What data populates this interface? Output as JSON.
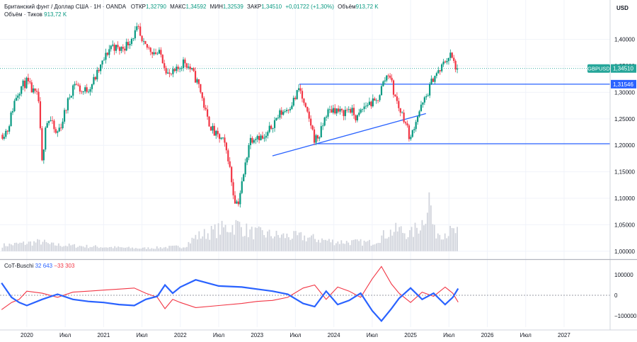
{
  "header": {
    "title": "Британский фунт / Доллар США · 1Н · OANDA",
    "ohlc": [
      {
        "label": "ОТКР",
        "value": "1,32790"
      },
      {
        "label": "МАКС",
        "value": "1,34592"
      },
      {
        "label": "МИН",
        "value": "1,32539"
      },
      {
        "label": "ЗАКР",
        "value": "1,34510"
      }
    ],
    "change": "+0,01722 (+1,30%)",
    "volume_label": "Объём",
    "volume_value": "913,72 K",
    "volume_ticks_label": "Объём · Тиков",
    "volume_ticks_value": "913,72 K"
  },
  "currency": "USD",
  "indicator": {
    "name": "CoT-Buschi",
    "value1": "32 643",
    "value2": "−33 303"
  },
  "colors": {
    "up": "#089981",
    "down": "#f23645",
    "level": "#2962ff",
    "cot_blue": "#2962ff",
    "cot_red": "#f23645",
    "volume": "#d1d4dc",
    "price_badge": "#26a69a",
    "level_badge": "#2962ff"
  },
  "chart_data": {
    "type": "candlestick",
    "symbol": "GBPUSD",
    "price_axis_ticks": [
      "1,40000",
      "1,35000",
      "1,30000",
      "1,25000",
      "1,20000",
      "1,15000",
      "1,10000",
      "1,05000",
      "1,00000"
    ],
    "ylim": [
      0.985,
      1.445
    ],
    "time_axis_labels": [
      "2020",
      "Июл",
      "2021",
      "Июл",
      "2022",
      "Июл",
      "2023",
      "Июл",
      "2024",
      "Июл",
      "2025",
      "Июл",
      "2026",
      "Июл",
      "2027"
    ],
    "time_axis_values": [
      2020.0,
      2020.5,
      2021.0,
      2021.5,
      2022.0,
      2022.5,
      2023.0,
      2023.5,
      2024.0,
      2024.5,
      2025.0,
      2025.5,
      2026.0,
      2026.5,
      2027.0
    ],
    "xlim": [
      2019.65,
      2027.6
    ],
    "price_path": [
      [
        2019.67,
        1.22
      ],
      [
        2019.75,
        1.23
      ],
      [
        2019.85,
        1.29
      ],
      [
        2019.92,
        1.31
      ],
      [
        2020.0,
        1.32
      ],
      [
        2020.08,
        1.3
      ],
      [
        2020.15,
        1.29
      ],
      [
        2020.2,
        1.16
      ],
      [
        2020.24,
        1.24
      ],
      [
        2020.3,
        1.25
      ],
      [
        2020.38,
        1.22
      ],
      [
        2020.45,
        1.24
      ],
      [
        2020.55,
        1.29
      ],
      [
        2020.62,
        1.32
      ],
      [
        2020.72,
        1.3
      ],
      [
        2020.82,
        1.31
      ],
      [
        2020.9,
        1.33
      ],
      [
        2021.0,
        1.36
      ],
      [
        2021.1,
        1.39
      ],
      [
        2021.2,
        1.38
      ],
      [
        2021.3,
        1.39
      ],
      [
        2021.4,
        1.41
      ],
      [
        2021.45,
        1.42
      ],
      [
        2021.5,
        1.39
      ],
      [
        2021.62,
        1.38
      ],
      [
        2021.75,
        1.37
      ],
      [
        2021.85,
        1.33
      ],
      [
        2021.95,
        1.34
      ],
      [
        2022.05,
        1.36
      ],
      [
        2022.15,
        1.34
      ],
      [
        2022.25,
        1.31
      ],
      [
        2022.35,
        1.25
      ],
      [
        2022.45,
        1.22
      ],
      [
        2022.55,
        1.21
      ],
      [
        2022.62,
        1.18
      ],
      [
        2022.7,
        1.1
      ],
      [
        2022.75,
        1.09
      ],
      [
        2022.82,
        1.14
      ],
      [
        2022.9,
        1.21
      ],
      [
        2023.0,
        1.22
      ],
      [
        2023.1,
        1.21
      ],
      [
        2023.2,
        1.24
      ],
      [
        2023.3,
        1.26
      ],
      [
        2023.4,
        1.27
      ],
      [
        2023.5,
        1.29
      ],
      [
        2023.55,
        1.31
      ],
      [
        2023.62,
        1.27
      ],
      [
        2023.7,
        1.24
      ],
      [
        2023.75,
        1.21
      ],
      [
        2023.82,
        1.22
      ],
      [
        2023.9,
        1.26
      ],
      [
        2024.0,
        1.27
      ],
      [
        2024.1,
        1.26
      ],
      [
        2024.2,
        1.27
      ],
      [
        2024.3,
        1.25
      ],
      [
        2024.38,
        1.27
      ],
      [
        2024.45,
        1.28
      ],
      [
        2024.55,
        1.28
      ],
      [
        2024.65,
        1.32
      ],
      [
        2024.72,
        1.34
      ],
      [
        2024.78,
        1.3
      ],
      [
        2024.85,
        1.27
      ],
      [
        2024.92,
        1.25
      ],
      [
        2025.0,
        1.21
      ],
      [
        2025.05,
        1.24
      ],
      [
        2025.1,
        1.26
      ],
      [
        2025.2,
        1.29
      ],
      [
        2025.3,
        1.33
      ],
      [
        2025.38,
        1.34
      ],
      [
        2025.45,
        1.36
      ],
      [
        2025.52,
        1.37
      ],
      [
        2025.58,
        1.35
      ],
      [
        2025.62,
        1.3451
      ]
    ],
    "last_price": {
      "label": "GBPUSD",
      "value": "1,34510",
      "y": 1.3451
    },
    "levels": [
      {
        "value": 1.31546,
        "label": "1,31546",
        "x_start": 2023.55
      },
      {
        "value": 1.203,
        "label": "",
        "x_start": 2023.78
      }
    ],
    "trendline": {
      "x1": 2023.2,
      "y1": 1.18,
      "x2": 2025.2,
      "y2": 1.26
    },
    "volume": {
      "axis_min": 1.0,
      "profile": [
        [
          2019.67,
          0.012
        ],
        [
          2020.2,
          0.02
        ],
        [
          2020.3,
          0.014
        ],
        [
          2020.8,
          0.01
        ],
        [
          2021.5,
          0.006
        ],
        [
          2022.05,
          0.01
        ],
        [
          2022.2,
          0.03
        ],
        [
          2022.5,
          0.045
        ],
        [
          2022.75,
          0.055
        ],
        [
          2022.9,
          0.04
        ],
        [
          2023.3,
          0.032
        ],
        [
          2023.6,
          0.03
        ],
        [
          2024.0,
          0.02
        ],
        [
          2024.5,
          0.018
        ],
        [
          2024.7,
          0.038
        ],
        [
          2024.85,
          0.045
        ],
        [
          2025.0,
          0.035
        ],
        [
          2025.15,
          0.06
        ],
        [
          2025.25,
          0.115
        ],
        [
          2025.3,
          0.04
        ],
        [
          2025.62,
          0.04
        ]
      ]
    },
    "cot": {
      "ticks": [
        "100000",
        "0",
        "−100000"
      ],
      "ylim": [
        -155000,
        155000
      ],
      "blue": [
        [
          2019.67,
          60000
        ],
        [
          2019.8,
          -10000
        ],
        [
          2019.9,
          -35000
        ],
        [
          2020.0,
          -50000
        ],
        [
          2020.2,
          -20000
        ],
        [
          2020.4,
          5000
        ],
        [
          2020.6,
          -20000
        ],
        [
          2020.8,
          -30000
        ],
        [
          2021.0,
          -35000
        ],
        [
          2021.2,
          -45000
        ],
        [
          2021.4,
          -50000
        ],
        [
          2021.55,
          -20000
        ],
        [
          2021.7,
          -5000
        ],
        [
          2021.8,
          50000
        ],
        [
          2021.9,
          10000
        ],
        [
          2022.0,
          40000
        ],
        [
          2022.2,
          75000
        ],
        [
          2022.5,
          45000
        ],
        [
          2022.8,
          40000
        ],
        [
          2023.0,
          30000
        ],
        [
          2023.2,
          20000
        ],
        [
          2023.4,
          5000
        ],
        [
          2023.6,
          -40000
        ],
        [
          2023.75,
          -55000
        ],
        [
          2023.9,
          20000
        ],
        [
          2024.05,
          -45000
        ],
        [
          2024.2,
          -25000
        ],
        [
          2024.35,
          10000
        ],
        [
          2024.5,
          -75000
        ],
        [
          2024.62,
          -125000
        ],
        [
          2024.75,
          -65000
        ],
        [
          2024.85,
          -15000
        ],
        [
          2025.0,
          35000
        ],
        [
          2025.15,
          -20000
        ],
        [
          2025.3,
          10000
        ],
        [
          2025.45,
          -45000
        ],
        [
          2025.55,
          -10000
        ],
        [
          2025.62,
          32643
        ]
      ],
      "red": [
        [
          2019.67,
          -70000
        ],
        [
          2019.8,
          -35000
        ],
        [
          2019.9,
          -20000
        ],
        [
          2020.0,
          20000
        ],
        [
          2020.2,
          10000
        ],
        [
          2020.4,
          -10000
        ],
        [
          2020.6,
          15000
        ],
        [
          2020.8,
          20000
        ],
        [
          2021.0,
          25000
        ],
        [
          2021.2,
          30000
        ],
        [
          2021.4,
          35000
        ],
        [
          2021.55,
          10000
        ],
        [
          2021.7,
          -10000
        ],
        [
          2021.8,
          -65000
        ],
        [
          2021.9,
          -20000
        ],
        [
          2022.0,
          -35000
        ],
        [
          2022.2,
          -60000
        ],
        [
          2022.5,
          -50000
        ],
        [
          2022.8,
          -40000
        ],
        [
          2023.0,
          -30000
        ],
        [
          2023.2,
          -25000
        ],
        [
          2023.4,
          -10000
        ],
        [
          2023.6,
          35000
        ],
        [
          2023.75,
          50000
        ],
        [
          2023.9,
          -20000
        ],
        [
          2024.05,
          40000
        ],
        [
          2024.2,
          20000
        ],
        [
          2024.35,
          -10000
        ],
        [
          2024.5,
          80000
        ],
        [
          2024.62,
          140000
        ],
        [
          2024.75,
          55000
        ],
        [
          2024.85,
          10000
        ],
        [
          2025.0,
          -35000
        ],
        [
          2025.15,
          15000
        ],
        [
          2025.3,
          -5000
        ],
        [
          2025.45,
          40000
        ],
        [
          2025.55,
          10000
        ],
        [
          2025.62,
          -33303
        ]
      ]
    }
  }
}
